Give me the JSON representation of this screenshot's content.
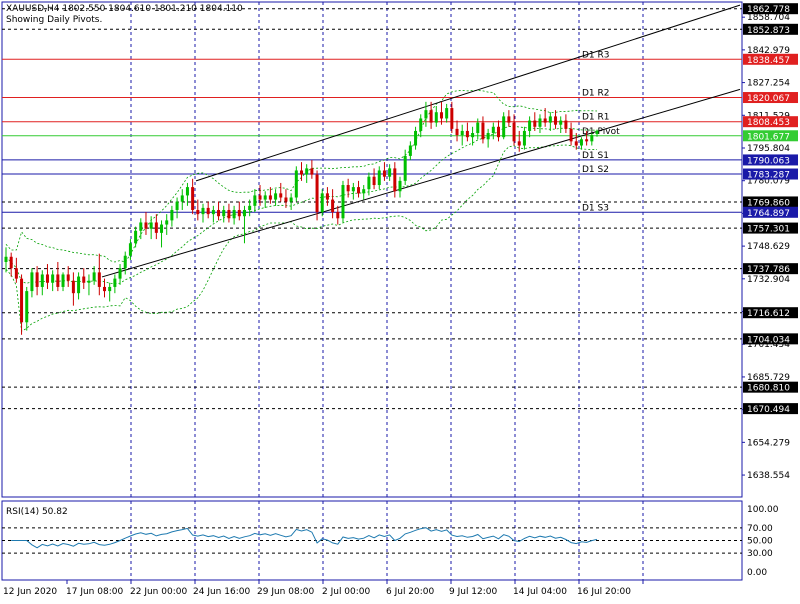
{
  "header": {
    "symbol_line": "XAUUSD,H4  1802.550 1804.610 1801.210 1804.110",
    "pivot_note": "Showing Daily Pivots."
  },
  "rsi_panel": {
    "label": "RSI(14) 50.82",
    "value": 50.82
  },
  "colors": {
    "background": "#ffffff",
    "bull": "#00bf00",
    "bear": "#cc0000",
    "resistance": "#e02020",
    "pivot": "#33cc33",
    "support": "#1a1aa8",
    "axis": "#1a1aa8",
    "grid": "#1a1aa8",
    "bands": "#00a000",
    "channel": "#000000",
    "label_bg": "#000000"
  },
  "chart_data": {
    "type": "candlestick",
    "symbol": "XAUUSD",
    "timeframe": "H4",
    "ohlc_last": {
      "open": 1802.55,
      "high": 1804.61,
      "low": 1801.21,
      "close": 1804.11
    },
    "ylim": [
      1628,
      1866
    ],
    "price_axis_ticks": [
      "1858.704",
      "1842.979",
      "1827.254",
      "1811.529",
      "1795.804",
      "1780.079",
      "1764.354",
      "1748.629",
      "1732.904",
      "1717.179",
      "1701.454",
      "1685.729",
      "1670.004",
      "1654.279",
      "1638.554"
    ],
    "time_axis_ticks": [
      "12 Jun 2020",
      "17 Jun 08:00",
      "22 Jun 00:00",
      "24 Jun 16:00",
      "29 Jun 08:00",
      "2 Jul 00:00",
      "6 Jul 20:00",
      "9 Jul 12:00",
      "14 Jul 04:00",
      "16 Jul 20:00"
    ],
    "pivot_levels": [
      {
        "name": "D1 R3",
        "price": 1838.457,
        "kind": "resistance"
      },
      {
        "name": "D1 R2",
        "price": 1820.067,
        "kind": "resistance"
      },
      {
        "name": "D1 R1",
        "price": 1808.453,
        "kind": "resistance"
      },
      {
        "name": "D1 Pivot",
        "price": 1801.677,
        "kind": "pivot"
      },
      {
        "name": "D1 S1",
        "price": 1790.063,
        "kind": "support"
      },
      {
        "name": "D1 S2",
        "price": 1783.287,
        "kind": "support"
      },
      {
        "name": "D1 S3",
        "price": 1764.897,
        "kind": "support"
      }
    ],
    "horizontal_levels": [
      1862.778,
      1852.873,
      1769.86,
      1757.301,
      1737.786,
      1716.612,
      1704.034,
      1680.81,
      1670.494
    ],
    "channel": {
      "upper": [
        [
          196,
          1780.0
        ],
        [
          740,
          1864.5
        ]
      ],
      "lower": [
        [
          102,
          1733.8
        ],
        [
          740,
          1824.0
        ]
      ]
    },
    "candles": [
      [
        1741.0,
        1748.0,
        1736.0,
        1743.5
      ],
      [
        1743.5,
        1745.5,
        1734.0,
        1738.0
      ],
      [
        1738.0,
        1743.0,
        1731.0,
        1733.0
      ],
      [
        1733.0,
        1735.0,
        1706.0,
        1712.0
      ],
      [
        1712.0,
        1729.0,
        1708.0,
        1727.0
      ],
      [
        1727.0,
        1738.0,
        1724.0,
        1736.0
      ],
      [
        1736.0,
        1739.0,
        1725.0,
        1729.0
      ],
      [
        1729.0,
        1737.0,
        1725.0,
        1735.0
      ],
      [
        1735.0,
        1740.0,
        1728.0,
        1731.0
      ],
      [
        1731.0,
        1737.0,
        1727.0,
        1735.0
      ],
      [
        1735.0,
        1741.0,
        1727.0,
        1729.0
      ],
      [
        1729.0,
        1736.0,
        1727.0,
        1735.0
      ],
      [
        1735.0,
        1739.0,
        1729.0,
        1732.0
      ],
      [
        1732.0,
        1736.0,
        1720.0,
        1726.0
      ],
      [
        1726.0,
        1736.0,
        1723.0,
        1734.0
      ],
      [
        1734.0,
        1738.0,
        1728.0,
        1731.0
      ],
      [
        1731.0,
        1735.0,
        1725.0,
        1732.0
      ],
      [
        1732.0,
        1739.0,
        1730.0,
        1736.0
      ],
      [
        1736.0,
        1745.0,
        1725.0,
        1729.0
      ],
      [
        1729.0,
        1733.0,
        1724.0,
        1727.0
      ],
      [
        1727.0,
        1731.0,
        1722.0,
        1729.0
      ],
      [
        1729.0,
        1735.0,
        1726.0,
        1733.0
      ],
      [
        1733.0,
        1740.0,
        1730.0,
        1738.0
      ],
      [
        1738.0,
        1746.0,
        1735.0,
        1744.0
      ],
      [
        1744.0,
        1752.0,
        1742.0,
        1750.0
      ],
      [
        1750.0,
        1758.0,
        1748.0,
        1756.0
      ],
      [
        1756.0,
        1762.0,
        1752.0,
        1760.0
      ],
      [
        1760.0,
        1765.0,
        1754.0,
        1757.0
      ],
      [
        1757.0,
        1763.0,
        1752.0,
        1760.0
      ],
      [
        1760.0,
        1764.0,
        1752.0,
        1755.0
      ],
      [
        1755.0,
        1761.0,
        1748.0,
        1759.0
      ],
      [
        1759.0,
        1764.0,
        1754.0,
        1761.0
      ],
      [
        1761.0,
        1768.0,
        1758.0,
        1766.0
      ],
      [
        1766.0,
        1772.0,
        1762.0,
        1770.0
      ],
      [
        1770.0,
        1776.0,
        1766.0,
        1773.0
      ],
      [
        1773.0,
        1779.0,
        1768.0,
        1777.0
      ],
      [
        1777.0,
        1781.0,
        1764.0,
        1766.0
      ],
      [
        1766.0,
        1771.0,
        1761.0,
        1764.0
      ],
      [
        1764.0,
        1769.0,
        1760.0,
        1767.0
      ],
      [
        1767.0,
        1770.0,
        1762.0,
        1764.0
      ],
      [
        1764.0,
        1768.0,
        1760.0,
        1766.0
      ],
      [
        1766.0,
        1770.0,
        1761.0,
        1763.0
      ],
      [
        1763.0,
        1768.0,
        1760.0,
        1766.0
      ],
      [
        1766.0,
        1769.0,
        1760.0,
        1762.0
      ],
      [
        1762.0,
        1768.0,
        1759.0,
        1766.0
      ],
      [
        1766.0,
        1770.0,
        1761.0,
        1763.0
      ],
      [
        1763.0,
        1768.0,
        1750.0,
        1766.0
      ],
      [
        1766.0,
        1771.0,
        1763.0,
        1768.0
      ],
      [
        1768.0,
        1776.0,
        1765.0,
        1773.0
      ],
      [
        1773.0,
        1778.0,
        1768.0,
        1771.0
      ],
      [
        1771.0,
        1775.0,
        1767.0,
        1773.0
      ],
      [
        1773.0,
        1777.0,
        1769.0,
        1771.0
      ],
      [
        1771.0,
        1776.0,
        1768.0,
        1774.0
      ],
      [
        1774.0,
        1779.0,
        1770.0,
        1772.0
      ],
      [
        1772.0,
        1776.0,
        1767.0,
        1770.0
      ],
      [
        1770.0,
        1774.0,
        1766.0,
        1772.0
      ],
      [
        1772.0,
        1787.0,
        1770.0,
        1785.0
      ],
      [
        1785.0,
        1789.0,
        1780.0,
        1783.0
      ],
      [
        1783.0,
        1788.0,
        1779.0,
        1786.0
      ],
      [
        1786.0,
        1790.0,
        1781.0,
        1783.0
      ],
      [
        1783.0,
        1785.0,
        1761.0,
        1765.0
      ],
      [
        1765.0,
        1776.0,
        1763.0,
        1774.0
      ],
      [
        1774.0,
        1777.0,
        1768.0,
        1771.0
      ],
      [
        1771.0,
        1776.0,
        1762.0,
        1765.0
      ],
      [
        1765.0,
        1768.0,
        1759.0,
        1762.0
      ],
      [
        1762.0,
        1780.0,
        1760.0,
        1778.0
      ],
      [
        1778.0,
        1781.0,
        1772.0,
        1775.0
      ],
      [
        1775.0,
        1779.0,
        1771.0,
        1777.0
      ],
      [
        1777.0,
        1780.0,
        1772.0,
        1774.0
      ],
      [
        1774.0,
        1778.0,
        1771.0,
        1776.0
      ],
      [
        1776.0,
        1784.0,
        1773.0,
        1782.0
      ],
      [
        1782.0,
        1786.0,
        1776.0,
        1778.0
      ],
      [
        1778.0,
        1787.0,
        1776.0,
        1785.0
      ],
      [
        1785.0,
        1789.0,
        1780.0,
        1782.0
      ],
      [
        1782.0,
        1788.0,
        1780.0,
        1786.0
      ],
      [
        1786.0,
        1789.0,
        1772.0,
        1775.0
      ],
      [
        1775.0,
        1782.0,
        1772.0,
        1780.0
      ],
      [
        1780.0,
        1795.0,
        1778.0,
        1792.0
      ],
      [
        1792.0,
        1799.0,
        1790.0,
        1797.0
      ],
      [
        1797.0,
        1806.0,
        1795.0,
        1804.0
      ],
      [
        1804.0,
        1812.0,
        1801.0,
        1810.0
      ],
      [
        1810.0,
        1818.0,
        1806.0,
        1814.0
      ],
      [
        1814.0,
        1818.0,
        1805.0,
        1808.0
      ],
      [
        1808.0,
        1816.0,
        1806.0,
        1813.0
      ],
      [
        1813.0,
        1818.0,
        1807.0,
        1810.0
      ],
      [
        1810.0,
        1817.0,
        1808.0,
        1815.0
      ],
      [
        1815.0,
        1818.0,
        1803.0,
        1805.0
      ],
      [
        1805.0,
        1809.0,
        1799.0,
        1802.0
      ],
      [
        1802.0,
        1807.0,
        1797.0,
        1804.0
      ],
      [
        1804.0,
        1808.0,
        1799.0,
        1801.0
      ],
      [
        1801.0,
        1806.0,
        1797.0,
        1803.0
      ],
      [
        1803.0,
        1810.0,
        1800.0,
        1808.0
      ],
      [
        1808.0,
        1811.0,
        1798.0,
        1800.0
      ],
      [
        1800.0,
        1805.0,
        1796.0,
        1803.0
      ],
      [
        1803.0,
        1808.0,
        1800.0,
        1806.0
      ],
      [
        1806.0,
        1809.0,
        1799.0,
        1801.0
      ],
      [
        1801.0,
        1813.0,
        1800.0,
        1811.0
      ],
      [
        1811.0,
        1814.0,
        1806.0,
        1808.0
      ],
      [
        1808.0,
        1812.0,
        1797.0,
        1799.0
      ],
      [
        1799.0,
        1804.0,
        1794.0,
        1797.0
      ],
      [
        1797.0,
        1806.0,
        1795.0,
        1804.0
      ],
      [
        1804.0,
        1811.0,
        1801.0,
        1809.0
      ],
      [
        1809.0,
        1813.0,
        1804.0,
        1806.0
      ],
      [
        1806.0,
        1812.0,
        1803.0,
        1810.0
      ],
      [
        1810.0,
        1815.0,
        1806.0,
        1808.0
      ],
      [
        1808.0,
        1813.0,
        1804.0,
        1811.0
      ],
      [
        1811.0,
        1814.0,
        1805.0,
        1807.0
      ],
      [
        1807.0,
        1811.0,
        1803.0,
        1809.0
      ],
      [
        1809.0,
        1812.0,
        1803.0,
        1805.0
      ],
      [
        1805.0,
        1808.0,
        1797.0,
        1799.0
      ],
      [
        1799.0,
        1803.0,
        1795.0,
        1797.0
      ],
      [
        1797.0,
        1801.0,
        1795.0,
        1800.0
      ],
      [
        1800.0,
        1804.0,
        1797.0,
        1799.0
      ],
      [
        1799.0,
        1803.0,
        1797.0,
        1802.0
      ],
      [
        1802.55,
        1804.61,
        1801.21,
        1804.11
      ]
    ],
    "rsi": {
      "name": "RSI(14)",
      "last": 50.82,
      "ylim": [
        0,
        100
      ],
      "levels": [
        30,
        50,
        70
      ],
      "ticks": [
        "100.00",
        "70.00",
        "50.00",
        "30.00",
        "0.00"
      ]
    }
  }
}
